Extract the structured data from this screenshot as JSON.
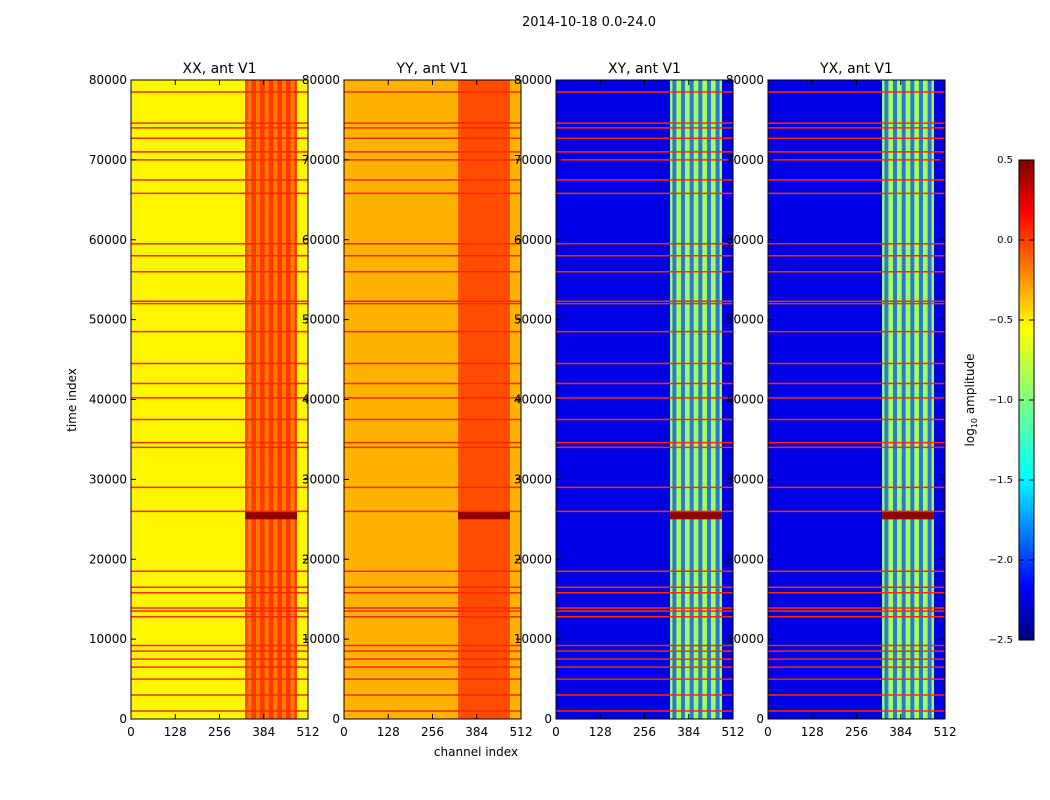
{
  "chart_data": {
    "type": "heatmap",
    "suptitle": "2014-10-18 0.0-24.0",
    "xlabel": "channel index",
    "ylabel": "time index",
    "xlim": [
      0,
      512
    ],
    "ylim": [
      0,
      80000
    ],
    "xticks": [
      0,
      128,
      256,
      384,
      512
    ],
    "yticks": [
      0,
      10000,
      20000,
      30000,
      40000,
      50000,
      60000,
      70000,
      80000
    ],
    "panels": [
      {
        "title": "XX, ant V1",
        "base_level": -0.6,
        "band_level": -0.05,
        "band_ch": [
          330,
          480
        ],
        "hot_rows": [
          25000,
          26000
        ]
      },
      {
        "title": "YY, ant V1",
        "base_level": -0.4,
        "band_level": -0.1,
        "band_ch": [
          330,
          480
        ],
        "hot_rows": [
          25000,
          26000
        ]
      },
      {
        "title": "XY, ant V1",
        "base_level": -2.2,
        "band_level": -0.9,
        "band_ch": [
          330,
          480
        ],
        "hot_rows": [
          25000,
          26000
        ]
      },
      {
        "title": "YX, ant V1",
        "base_level": -2.2,
        "band_level": -0.9,
        "band_ch": [
          330,
          480
        ],
        "hot_rows": [
          25000,
          26000
        ]
      }
    ],
    "flagged_time_rows": [
      1000,
      3000,
      5000,
      6500,
      7500,
      8500,
      9200,
      12800,
      13500,
      13900,
      15800,
      16500,
      18500,
      26000,
      29000,
      34000,
      34600,
      37500,
      40200,
      42000,
      44500,
      48500,
      52000,
      52300,
      56000,
      58000,
      59500,
      65800,
      67500,
      70000,
      71000,
      72700,
      74000,
      74600,
      78500
    ],
    "flag_level": 0.0,
    "colorbar": {
      "label_main": "log",
      "label_sub": "10",
      "label_suffix": " amplitude",
      "min": -2.5,
      "max": 0.5,
      "ticks": [
        "0.5",
        "0.0",
        "−0.5",
        "−1.0",
        "−1.5",
        "−2.0",
        "−2.5"
      ],
      "tick_values": [
        0.5,
        0.0,
        -0.5,
        -1.0,
        -1.5,
        -2.0,
        -2.5
      ],
      "colormap": "jet"
    }
  }
}
